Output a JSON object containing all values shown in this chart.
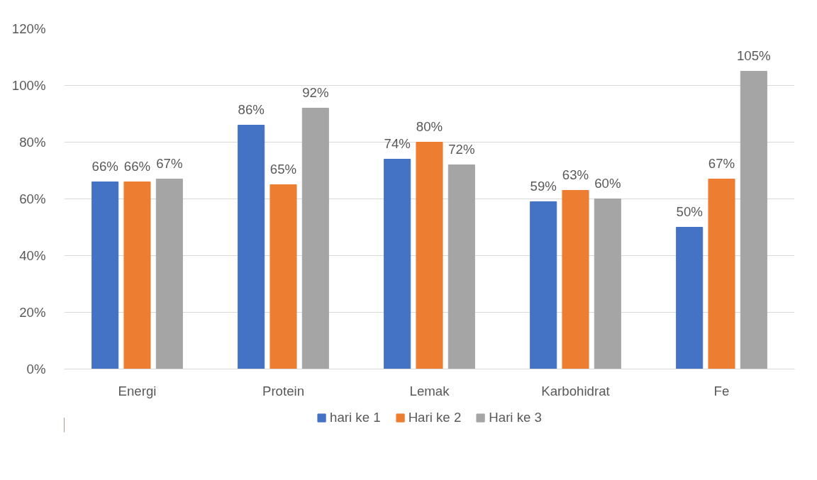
{
  "chart_data": {
    "type": "bar",
    "categories": [
      "Energi",
      "Protein",
      "Lemak",
      "Karbohidrat",
      "Fe"
    ],
    "series": [
      {
        "name": "hari ke 1",
        "color": "#4472c4",
        "values": [
          66,
          86,
          74,
          59,
          50
        ],
        "value_labels": [
          "66%",
          "86%",
          "74%",
          "59%",
          "50%"
        ]
      },
      {
        "name": "Hari ke 2",
        "color": "#ed7d31",
        "values": [
          66,
          65,
          80,
          63,
          67
        ],
        "value_labels": [
          "66%",
          "65%",
          "80%",
          "63%",
          "67%"
        ]
      },
      {
        "name": "Hari ke 3",
        "color": "#a5a5a5",
        "values": [
          67,
          92,
          72,
          60,
          105
        ],
        "value_labels": [
          "67%",
          "92%",
          "72%",
          "60%",
          "105%"
        ]
      }
    ],
    "ylim": [
      0,
      120
    ],
    "yticks": [
      {
        "value": 0,
        "label": "0%"
      },
      {
        "value": 20,
        "label": "20%"
      },
      {
        "value": 40,
        "label": "40%"
      },
      {
        "value": 60,
        "label": "60%"
      },
      {
        "value": 80,
        "label": "80%"
      },
      {
        "value": 100,
        "label": "100%"
      },
      {
        "value": 120,
        "label": "120%"
      }
    ],
    "grid": "y",
    "legend": "bottom"
  }
}
